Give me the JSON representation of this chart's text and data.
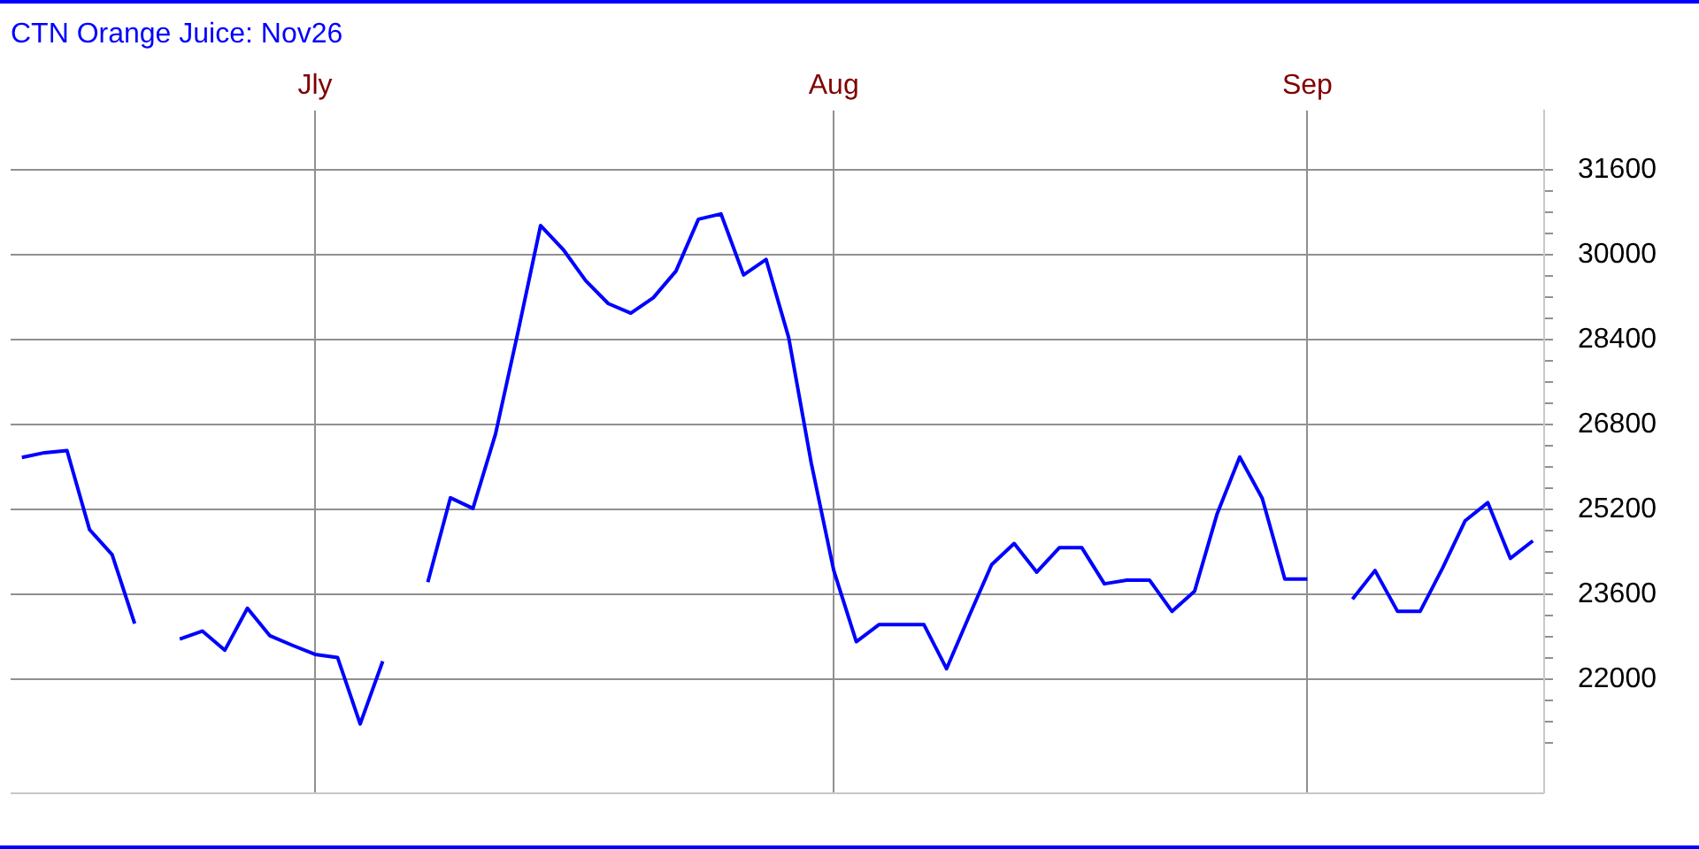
{
  "chart_data": {
    "type": "line",
    "title": "CTN Orange Juice: Nov26",
    "categories": [
      null,
      null,
      null,
      null,
      null,
      null,
      null,
      null,
      null,
      null,
      null,
      null,
      null,
      "Jly",
      null,
      null,
      null,
      null,
      null,
      null,
      null,
      null,
      null,
      null,
      null,
      null,
      null,
      null,
      null,
      null,
      null,
      null,
      null,
      null,
      null,
      null,
      "Aug",
      null,
      null,
      null,
      null,
      null,
      null,
      null,
      null,
      null,
      null,
      null,
      null,
      null,
      null,
      null,
      null,
      null,
      null,
      null,
      null,
      "Sep",
      null,
      null,
      null,
      null,
      null,
      null,
      null,
      null,
      null,
      null
    ],
    "series": [
      {
        "color": "#0000ff",
        "values": [
          26180,
          26270,
          26310,
          24820,
          24350,
          23050,
          null,
          22760,
          22910,
          22550,
          23340,
          22820,
          22640,
          22470,
          22410,
          21160,
          22340,
          null,
          23830,
          25420,
          25220,
          26620,
          28550,
          30550,
          30100,
          29510,
          29080,
          28900,
          29190,
          29690,
          30670,
          30770,
          29620,
          29910,
          28440,
          26080,
          24050,
          22710,
          23030,
          23030,
          23030,
          22200,
          23190,
          24160,
          24560,
          24020,
          24480,
          24480,
          23800,
          23870,
          23870,
          23280,
          23660,
          25120,
          26190,
          25410,
          23890,
          23890,
          null,
          23510,
          24050,
          23280,
          23280,
          24100,
          24990,
          25330,
          24280,
          24610
        ]
      }
    ],
    "ylim": [
      19870,
      32720
    ],
    "yticks": [
      {
        "value": 20800,
        "label": null
      },
      {
        "value": 21200,
        "label": null
      },
      {
        "value": 21600,
        "label": null
      },
      22000,
      {
        "value": 22400,
        "label": null
      },
      {
        "value": 22800,
        "label": null
      },
      {
        "value": 23200,
        "label": null
      },
      23600,
      {
        "value": 24000,
        "label": null
      },
      {
        "value": 24400,
        "label": null
      },
      {
        "value": 24800,
        "label": null
      },
      25200,
      {
        "value": 25600,
        "label": null
      },
      {
        "value": 26000,
        "label": null
      },
      {
        "value": 26400,
        "label": null
      },
      26800,
      {
        "value": 27200,
        "label": null
      },
      {
        "value": 27600,
        "label": null
      },
      {
        "value": 28000,
        "label": null
      },
      28400,
      {
        "value": 28800,
        "label": null
      },
      {
        "value": 29200,
        "label": null
      },
      {
        "value": 29600,
        "label": null
      },
      30000,
      {
        "value": 30400,
        "label": null
      },
      {
        "value": 30800,
        "label": null
      },
      {
        "value": 31200,
        "label": null
      },
      31600
    ],
    "grid": true,
    "legend": false,
    "marker": "none",
    "line_style": "solid"
  }
}
